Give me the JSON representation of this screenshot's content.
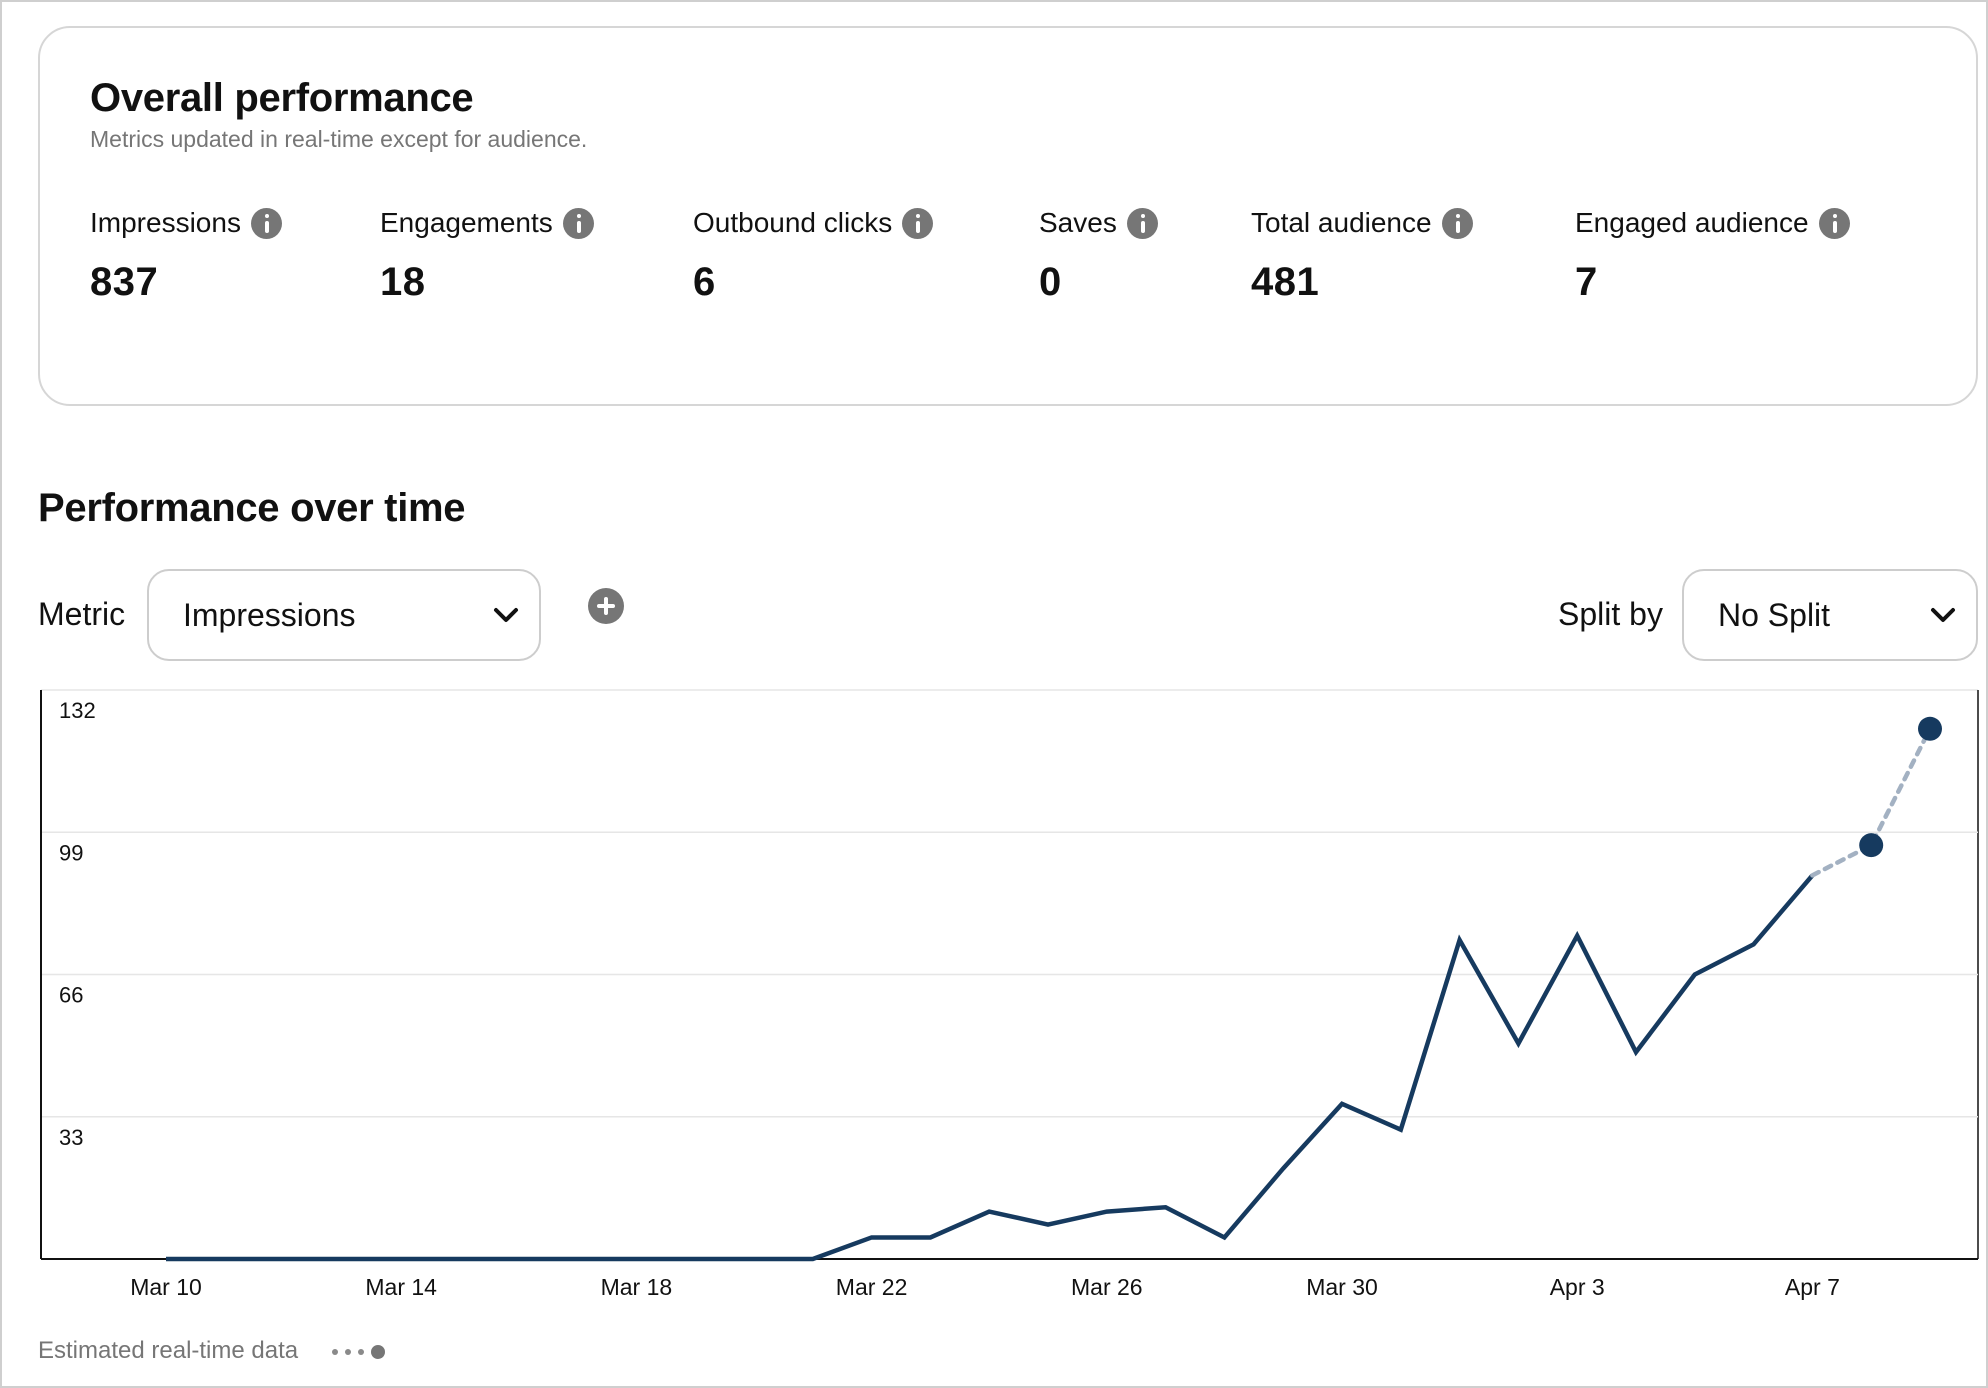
{
  "overall": {
    "title": "Overall performance",
    "subtitle": "Metrics updated in real-time except for audience.",
    "metrics": [
      {
        "label": "Impressions",
        "value": "837"
      },
      {
        "label": "Engagements",
        "value": "18"
      },
      {
        "label": "Outbound clicks",
        "value": "6"
      },
      {
        "label": "Saves",
        "value": "0"
      },
      {
        "label": "Total audience",
        "value": "481"
      },
      {
        "label": "Engaged audience",
        "value": "7"
      }
    ]
  },
  "performance": {
    "title": "Performance over time",
    "metric_label": "Metric",
    "metric_value": "Impressions",
    "split_label": "Split by",
    "split_value": "No Split",
    "estimated_note": "Estimated real-time data"
  },
  "colors": {
    "line": "#163a5f",
    "estimated_line": "#a3b1c2",
    "grid": "#e6e6e6",
    "axis": "#111111"
  },
  "chart_data": {
    "type": "line",
    "x_tick_labels": [
      "Mar 10",
      "Mar 14",
      "Mar 18",
      "Mar 22",
      "Mar 26",
      "Mar 30",
      "Apr 3",
      "Apr 7"
    ],
    "y_ticks": [
      33,
      66,
      99,
      132
    ],
    "ylim": [
      0,
      132
    ],
    "grid": true,
    "series": [
      {
        "x": [
          "Mar 10",
          "Mar 11",
          "Mar 12",
          "Mar 13",
          "Mar 14",
          "Mar 15",
          "Mar 16",
          "Mar 17",
          "Mar 18",
          "Mar 19",
          "Mar 20",
          "Mar 21",
          "Mar 22",
          "Mar 23",
          "Mar 24",
          "Mar 25",
          "Mar 26",
          "Mar 27",
          "Mar 28",
          "Mar 29",
          "Mar 30",
          "Mar 31",
          "Apr 1",
          "Apr 2",
          "Apr 3",
          "Apr 4",
          "Apr 5",
          "Apr 6",
          "Apr 7"
        ],
        "values": [
          0,
          0,
          0,
          0,
          0,
          0,
          0,
          0,
          0,
          0,
          0,
          0,
          5,
          5,
          11,
          8,
          11,
          12,
          5,
          21,
          36,
          30,
          74,
          50,
          75,
          48,
          66,
          73,
          89
        ]
      },
      {
        "estimated": true,
        "x": [
          "Apr 7",
          "Apr 8",
          "Apr 9"
        ],
        "values": [
          89,
          96,
          123
        ]
      }
    ]
  }
}
